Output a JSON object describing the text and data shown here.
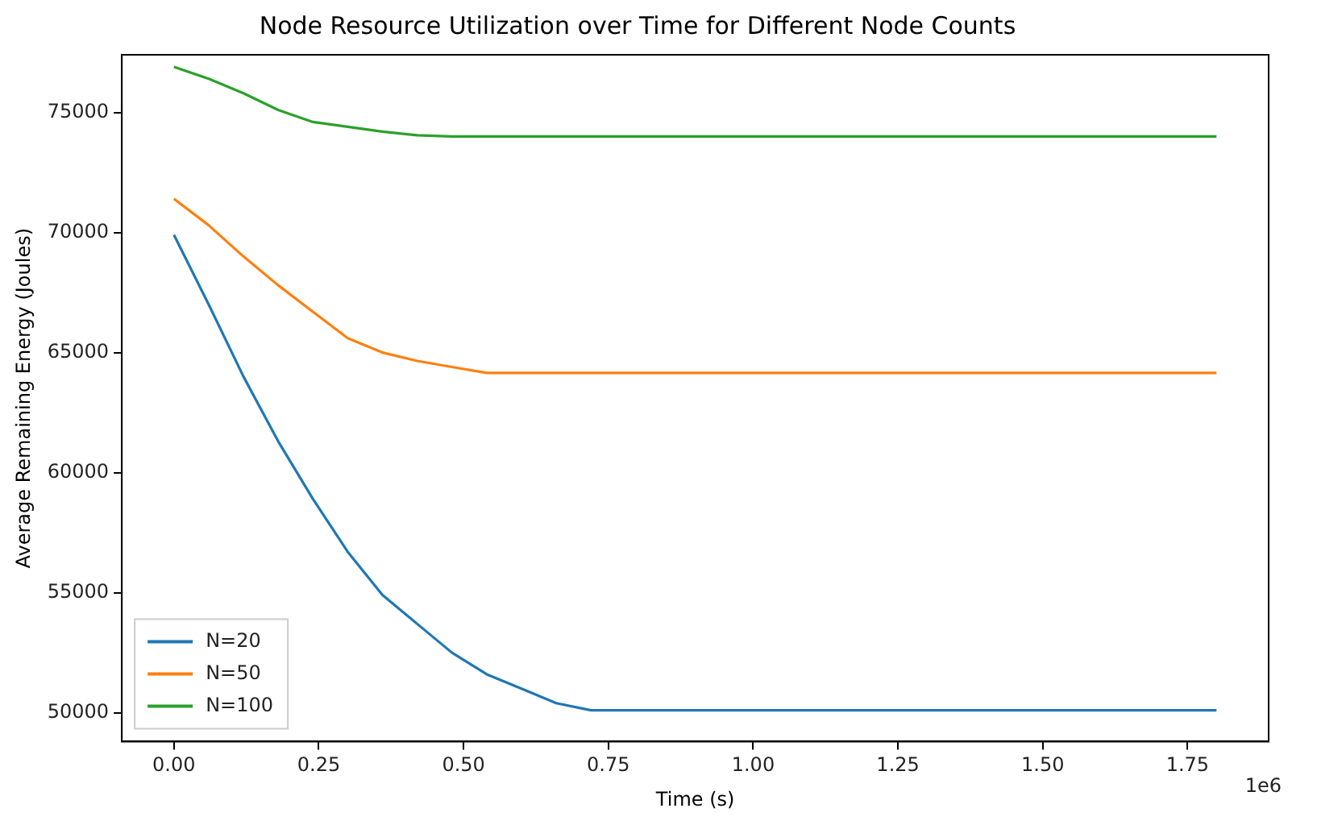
{
  "chart_data": {
    "type": "line",
    "title": "Node Resource Utilization over Time for Different Node Counts",
    "xlabel": "Time (s)",
    "ylabel": "Average Remaining Energy (Joules)",
    "annotations": [
      "1e6"
    ],
    "x": [
      0,
      0.06,
      0.12,
      0.18,
      0.24,
      0.3,
      0.36,
      0.42,
      0.48,
      0.54,
      0.6,
      0.66,
      0.72,
      1.8
    ],
    "series": [
      {
        "name": "N=20",
        "color": "#1f77b4",
        "values": [
          69900,
          67000,
          64000,
          61300,
          58900,
          56700,
          54900,
          53700,
          52500,
          51600,
          51000,
          50400,
          50100,
          50100
        ]
      },
      {
        "name": "N=50",
        "color": "#ff7f0e",
        "values": [
          71400,
          70300,
          69000,
          67800,
          66700,
          65600,
          65000,
          64650,
          64400,
          64150,
          64150,
          64150,
          64150,
          64150
        ]
      },
      {
        "name": "N=100",
        "color": "#2ca02c",
        "values": [
          76900,
          76400,
          75800,
          75100,
          74600,
          74400,
          74200,
          74050,
          74000,
          74000,
          74000,
          74000,
          74000,
          74000
        ]
      }
    ],
    "xlim": [
      -0.09,
      1.89
    ],
    "ylim": [
      48800,
      77400
    ],
    "xticks": [
      {
        "value": 0,
        "label": "0.00"
      },
      {
        "value": 0.25,
        "label": "0.25"
      },
      {
        "value": 0.5,
        "label": "0.50"
      },
      {
        "value": 0.75,
        "label": "0.75"
      },
      {
        "value": 1,
        "label": "1.00"
      },
      {
        "value": 1.25,
        "label": "1.25"
      },
      {
        "value": 1.5,
        "label": "1.50"
      },
      {
        "value": 1.75,
        "label": "1.75"
      }
    ],
    "yticks": [
      50000,
      55000,
      60000,
      65000,
      70000,
      75000
    ],
    "grid": false,
    "legend": "bottom left",
    "marker": "none",
    "line_style": "solid"
  }
}
